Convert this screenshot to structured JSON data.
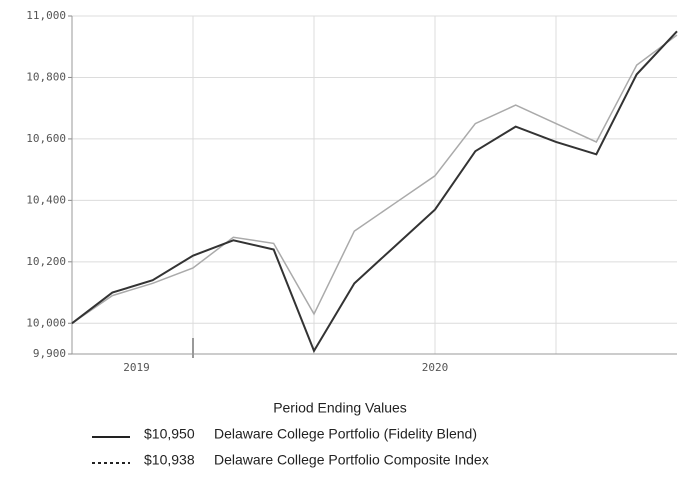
{
  "chart_data": {
    "type": "line",
    "x": [
      0,
      1,
      2,
      3,
      4,
      5,
      6,
      7,
      8,
      9,
      10,
      11,
      12,
      13,
      14,
      15
    ],
    "xlim": [
      0,
      15
    ],
    "xticks": [
      3,
      6,
      9,
      12
    ],
    "year_ticks": [
      {
        "value": 1.6,
        "label": "2019"
      },
      {
        "value": 9,
        "label": "2020"
      }
    ],
    "ylim": [
      9900,
      11000
    ],
    "yticks": [
      {
        "value": 9900,
        "label": "9,900"
      },
      {
        "value": 10000,
        "label": "10,000"
      },
      {
        "value": 10200,
        "label": "10,200"
      },
      {
        "value": 10400,
        "label": "10,400"
      },
      {
        "value": 10600,
        "label": "10,600"
      },
      {
        "value": 10800,
        "label": "10,800"
      },
      {
        "value": 11000,
        "label": "11,000"
      }
    ],
    "grid": true,
    "legend_title": "Period Ending Values",
    "series": [
      {
        "name": "Delaware College Portfolio (Fidelity Blend)",
        "color": "#333333",
        "dash": "solid",
        "last_value_label": "$10,950",
        "values": [
          10000,
          10100,
          10140,
          10220,
          10270,
          10240,
          9910,
          10130,
          10250,
          10370,
          10560,
          10640,
          10590,
          10550,
          10810,
          10950
        ]
      },
      {
        "name": "Delaware College Portfolio Composite Index",
        "color": "#aaaaaa",
        "dash": "dotted",
        "last_value_label": "$10,938",
        "values": [
          10000,
          10090,
          10130,
          10180,
          10280,
          10260,
          10030,
          10300,
          10390,
          10480,
          10650,
          10710,
          10650,
          10590,
          10840,
          10938
        ]
      }
    ]
  }
}
